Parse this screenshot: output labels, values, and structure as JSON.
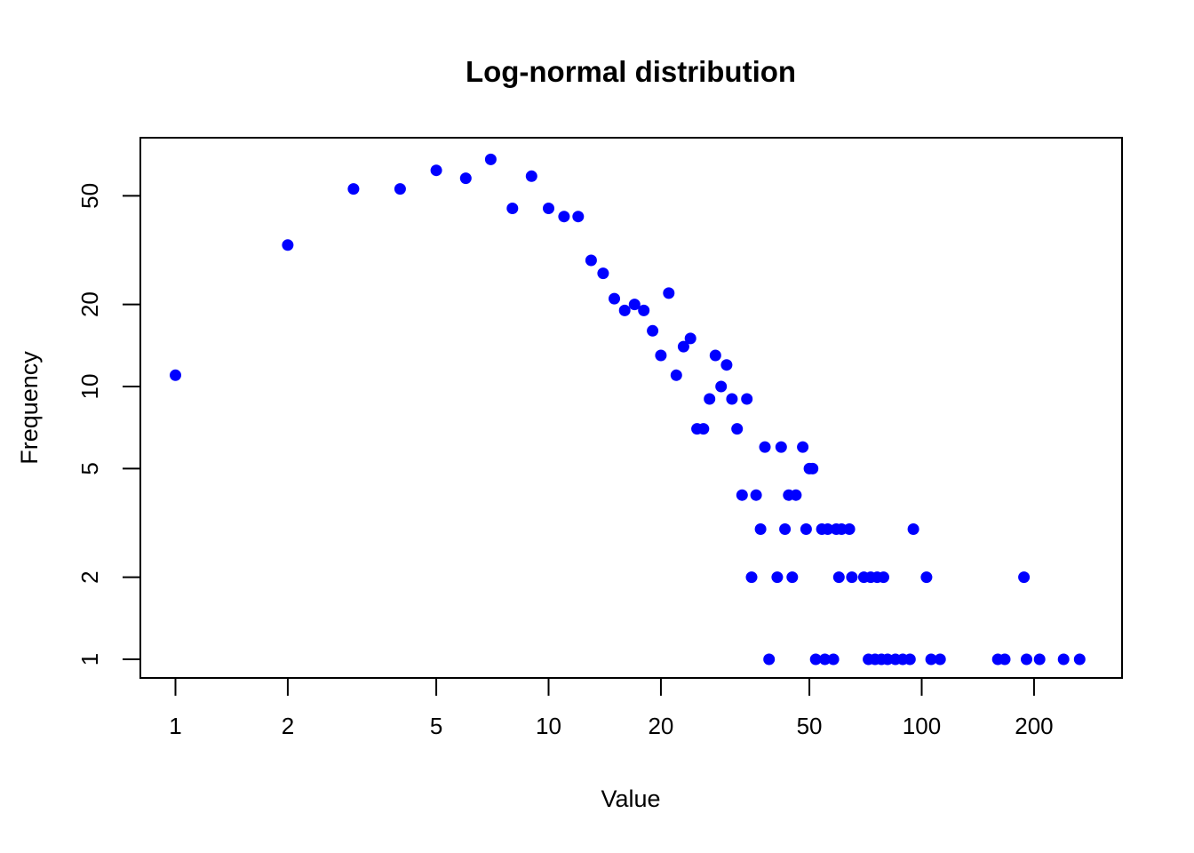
{
  "title": "Log-normal distribution",
  "colors": {
    "point": "#0000ff",
    "axis": "#000000",
    "background": "#ffffff"
  },
  "chart_data": {
    "type": "scatter",
    "title": "Log-normal distribution",
    "xlabel": "Value",
    "ylabel": "Frequency",
    "x_scale": "log",
    "y_scale": "log",
    "xlim": [
      0.8,
      330
    ],
    "ylim": [
      0.85,
      75
    ],
    "x_ticks": [
      1,
      2,
      5,
      10,
      20,
      50,
      100,
      200
    ],
    "y_ticks": [
      1,
      2,
      5,
      10,
      20,
      50
    ],
    "grid": false,
    "legend": "none",
    "point_color": "#0000ff",
    "points": [
      [
        1,
        11
      ],
      [
        2,
        33
      ],
      [
        3,
        53
      ],
      [
        4,
        53
      ],
      [
        5,
        62
      ],
      [
        6,
        58
      ],
      [
        7,
        68
      ],
      [
        8,
        45
      ],
      [
        9,
        59
      ],
      [
        10,
        45
      ],
      [
        11,
        42
      ],
      [
        12,
        42
      ],
      [
        13,
        29
      ],
      [
        14,
        26
      ],
      [
        15,
        21
      ],
      [
        16,
        19
      ],
      [
        17,
        20
      ],
      [
        18,
        19
      ],
      [
        19,
        16
      ],
      [
        20,
        13
      ],
      [
        21,
        22
      ],
      [
        22,
        11
      ],
      [
        23,
        14
      ],
      [
        24,
        15
      ],
      [
        25,
        7
      ],
      [
        26,
        7
      ],
      [
        27,
        9
      ],
      [
        28,
        13
      ],
      [
        29,
        10
      ],
      [
        30,
        12
      ],
      [
        31,
        9
      ],
      [
        32,
        7
      ],
      [
        33,
        4
      ],
      [
        34,
        9
      ],
      [
        35,
        2
      ],
      [
        36,
        4
      ],
      [
        37,
        3
      ],
      [
        38,
        6
      ],
      [
        39,
        1
      ],
      [
        41,
        2
      ],
      [
        42,
        6
      ],
      [
        43,
        3
      ],
      [
        44,
        4
      ],
      [
        45,
        2
      ],
      [
        46,
        4
      ],
      [
        48,
        6
      ],
      [
        49,
        3
      ],
      [
        50,
        5
      ],
      [
        51,
        5
      ],
      [
        52,
        1
      ],
      [
        54,
        3
      ],
      [
        55,
        1
      ],
      [
        56,
        3
      ],
      [
        58,
        1
      ],
      [
        59,
        3
      ],
      [
        60,
        2
      ],
      [
        61,
        3
      ],
      [
        64,
        3
      ],
      [
        65,
        2
      ],
      [
        70,
        2
      ],
      [
        72,
        1
      ],
      [
        73,
        2
      ],
      [
        75,
        1
      ],
      [
        76,
        2
      ],
      [
        78,
        1
      ],
      [
        79,
        2
      ],
      [
        81,
        1
      ],
      [
        85,
        1
      ],
      [
        89,
        1
      ],
      [
        93,
        1
      ],
      [
        95,
        3
      ],
      [
        103,
        2
      ],
      [
        106,
        1
      ],
      [
        112,
        1
      ],
      [
        160,
        1
      ],
      [
        167,
        1
      ],
      [
        188,
        2
      ],
      [
        191,
        1
      ],
      [
        207,
        1
      ],
      [
        240,
        1
      ],
      [
        265,
        1
      ]
    ]
  }
}
